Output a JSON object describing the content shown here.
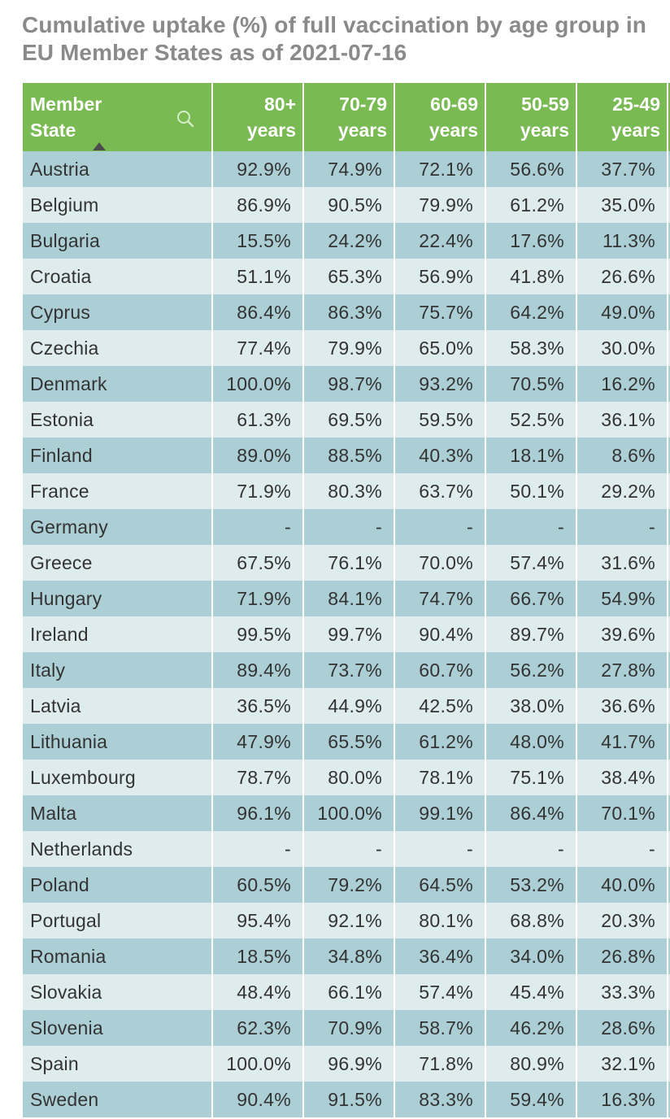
{
  "chart_data": {
    "type": "table",
    "title": "Cumulative uptake (%) of full vaccination by age group in EU Member States as of 2021-07-16",
    "columns": [
      {
        "key": "state",
        "line1": "Member",
        "line2": "State"
      },
      {
        "key": "a80",
        "line1": "80+",
        "line2": "years"
      },
      {
        "key": "a70",
        "line1": "70-79",
        "line2": "years"
      },
      {
        "key": "a60",
        "line1": "60-69",
        "line2": "years"
      },
      {
        "key": "a50",
        "line1": "50-59",
        "line2": "years"
      },
      {
        "key": "a25",
        "line1": "25-49",
        "line2": "years"
      }
    ],
    "rows": [
      {
        "state": "Austria",
        "values": [
          "92.9%",
          "74.9%",
          "72.1%",
          "56.6%",
          "37.7%"
        ]
      },
      {
        "state": "Belgium",
        "values": [
          "86.9%",
          "90.5%",
          "79.9%",
          "61.2%",
          "35.0%"
        ]
      },
      {
        "state": "Bulgaria",
        "values": [
          "15.5%",
          "24.2%",
          "22.4%",
          "17.6%",
          "11.3%"
        ]
      },
      {
        "state": "Croatia",
        "values": [
          "51.1%",
          "65.3%",
          "56.9%",
          "41.8%",
          "26.6%"
        ]
      },
      {
        "state": "Cyprus",
        "values": [
          "86.4%",
          "86.3%",
          "75.7%",
          "64.2%",
          "49.0%"
        ]
      },
      {
        "state": "Czechia",
        "values": [
          "77.4%",
          "79.9%",
          "65.0%",
          "58.3%",
          "30.0%"
        ]
      },
      {
        "state": "Denmark",
        "values": [
          "100.0%",
          "98.7%",
          "93.2%",
          "70.5%",
          "16.2%"
        ]
      },
      {
        "state": "Estonia",
        "values": [
          "61.3%",
          "69.5%",
          "59.5%",
          "52.5%",
          "36.1%"
        ]
      },
      {
        "state": "Finland",
        "values": [
          "89.0%",
          "88.5%",
          "40.3%",
          "18.1%",
          "8.6%"
        ]
      },
      {
        "state": "France",
        "values": [
          "71.9%",
          "80.3%",
          "63.7%",
          "50.1%",
          "29.2%"
        ]
      },
      {
        "state": "Germany",
        "values": [
          "-",
          "-",
          "-",
          "-",
          "-"
        ]
      },
      {
        "state": "Greece",
        "values": [
          "67.5%",
          "76.1%",
          "70.0%",
          "57.4%",
          "31.6%"
        ]
      },
      {
        "state": "Hungary",
        "values": [
          "71.9%",
          "84.1%",
          "74.7%",
          "66.7%",
          "54.9%"
        ]
      },
      {
        "state": "Ireland",
        "values": [
          "99.5%",
          "99.7%",
          "90.4%",
          "89.7%",
          "39.6%"
        ]
      },
      {
        "state": "Italy",
        "values": [
          "89.4%",
          "73.7%",
          "60.7%",
          "56.2%",
          "27.8%"
        ]
      },
      {
        "state": "Latvia",
        "values": [
          "36.5%",
          "44.9%",
          "42.5%",
          "38.0%",
          "36.6%"
        ]
      },
      {
        "state": "Lithuania",
        "values": [
          "47.9%",
          "65.5%",
          "61.2%",
          "48.0%",
          "41.7%"
        ]
      },
      {
        "state": "Luxembourg",
        "values": [
          "78.7%",
          "80.0%",
          "78.1%",
          "75.1%",
          "38.4%"
        ]
      },
      {
        "state": "Malta",
        "values": [
          "96.1%",
          "100.0%",
          "99.1%",
          "86.4%",
          "70.1%"
        ]
      },
      {
        "state": "Netherlands",
        "values": [
          "-",
          "-",
          "-",
          "-",
          "-"
        ]
      },
      {
        "state": "Poland",
        "values": [
          "60.5%",
          "79.2%",
          "64.5%",
          "53.2%",
          "40.0%"
        ]
      },
      {
        "state": "Portugal",
        "values": [
          "95.4%",
          "92.1%",
          "80.1%",
          "68.8%",
          "20.3%"
        ]
      },
      {
        "state": "Romania",
        "values": [
          "18.5%",
          "34.8%",
          "36.4%",
          "34.0%",
          "26.8%"
        ]
      },
      {
        "state": "Slovakia",
        "values": [
          "48.4%",
          "66.1%",
          "57.4%",
          "45.4%",
          "33.3%"
        ]
      },
      {
        "state": "Slovenia",
        "values": [
          "62.3%",
          "70.9%",
          "58.7%",
          "46.2%",
          "28.6%"
        ]
      },
      {
        "state": "Spain",
        "values": [
          "100.0%",
          "96.9%",
          "71.8%",
          "80.9%",
          "32.1%"
        ]
      },
      {
        "state": "Sweden",
        "values": [
          "90.4%",
          "91.5%",
          "83.3%",
          "59.4%",
          "16.3%"
        ]
      }
    ]
  },
  "icons": {
    "search": "search-icon",
    "sort": "sort-ascending-icon"
  },
  "colors": {
    "header_bg": "#7aba52",
    "row_dark": "#abcfd4",
    "row_light": "#deecee",
    "title": "#8a8a8a"
  }
}
